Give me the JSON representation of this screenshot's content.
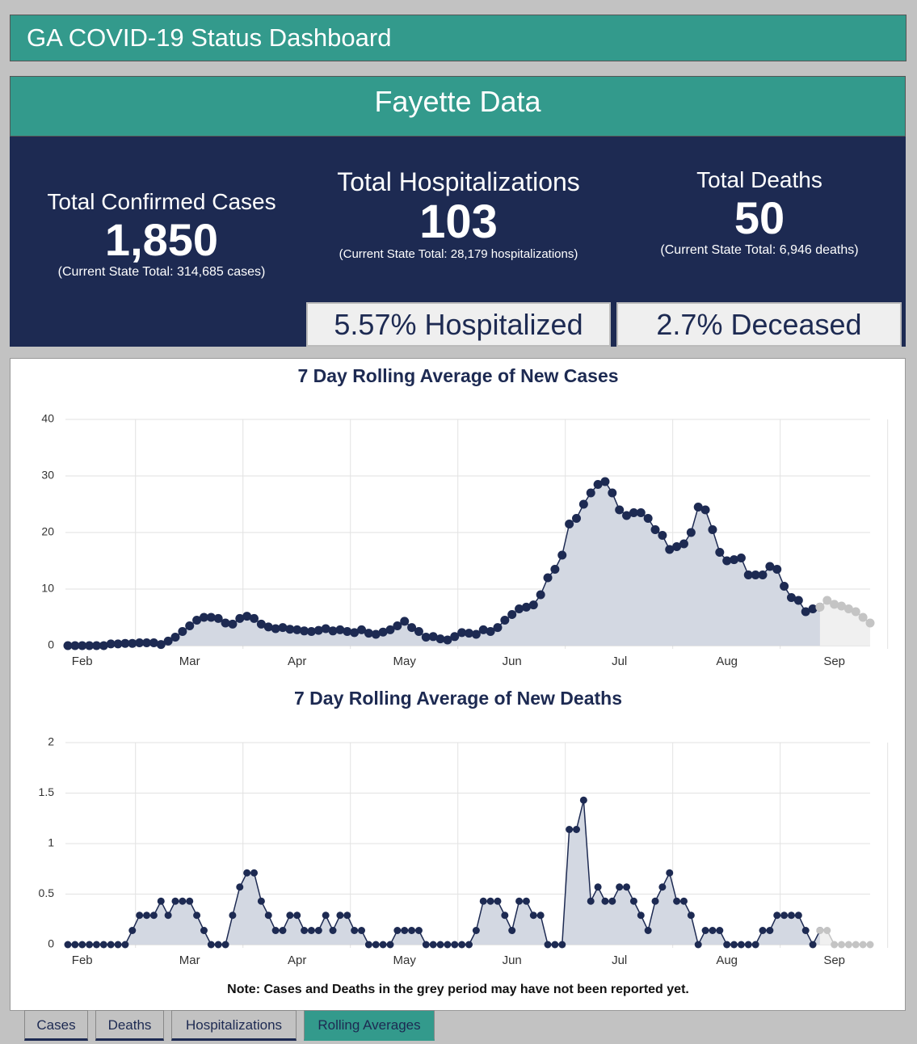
{
  "header": {
    "title": "GA COVID-19 Status Dashboard"
  },
  "panel": {
    "title": "Fayette Data",
    "stats": [
      {
        "label": "Total Confirmed Cases",
        "value": "1,850",
        "note": "(Current State Total: 314,685 cases)"
      },
      {
        "label": "Total Hospitalizations",
        "value": "103",
        "note": "(Current State Total: 28,179 hospitalizations)"
      },
      {
        "label": "Total Deaths",
        "value": "50",
        "note": "(Current State Total: 6,946 deaths)"
      }
    ],
    "rates": [
      "5.57% Hospitalized",
      "2.7% Deceased"
    ]
  },
  "chart_data": [
    {
      "type": "line",
      "title": "7 Day Rolling Average of New Cases",
      "area": true,
      "grid": true,
      "categories": [
        null,
        null,
        "Feb",
        null,
        null,
        null,
        null,
        null,
        null,
        null,
        null,
        null,
        null,
        null,
        null,
        null,
        null,
        "Mar",
        null,
        null,
        null,
        null,
        null,
        null,
        null,
        null,
        null,
        null,
        null,
        null,
        null,
        null,
        "Apr",
        null,
        null,
        null,
        null,
        null,
        null,
        null,
        null,
        null,
        null,
        null,
        null,
        null,
        null,
        "May",
        null,
        null,
        null,
        null,
        null,
        null,
        null,
        null,
        null,
        null,
        null,
        null,
        null,
        null,
        "Jun",
        null,
        null,
        null,
        null,
        null,
        null,
        null,
        null,
        null,
        null,
        null,
        null,
        null,
        null,
        "Jul",
        null,
        null,
        null,
        null,
        null,
        null,
        null,
        null,
        null,
        null,
        null,
        null,
        null,
        null,
        "Aug",
        null,
        null,
        null,
        null,
        null,
        null,
        null,
        null,
        null,
        null,
        null,
        null,
        null,
        null,
        "Sep",
        null,
        null,
        null,
        null,
        null
      ],
      "series": [
        {
          "color": "#1d2a52",
          "values": [
            0,
            0,
            0,
            0,
            0,
            0,
            0.3,
            0.3,
            0.4,
            0.4,
            0.5,
            0.5,
            0.5,
            0.2,
            0.8,
            1.5,
            2.5,
            3.5,
            4.5,
            5,
            5,
            4.8,
            4,
            3.8,
            4.8,
            5.2,
            4.8,
            3.8,
            3.3,
            3,
            3.2,
            2.9,
            2.8,
            2.6,
            2.5,
            2.7,
            3,
            2.6,
            2.8,
            2.5,
            2.3,
            2.8,
            2.2,
            2,
            2.4,
            2.8,
            3.5,
            4.3,
            3.2,
            2.5,
            1.5,
            1.6,
            1.2,
            1,
            1.6,
            2.3,
            2.2,
            2,
            2.8,
            2.5,
            3.2,
            4.5,
            5.5,
            6.5,
            6.8,
            7.2,
            9,
            12,
            13.5,
            16,
            21.5,
            22.5,
            25,
            27,
            28.5,
            29,
            27,
            24,
            23,
            23.5,
            23.5,
            22.5,
            20.5,
            19.5,
            17,
            17.5,
            18,
            20,
            24.5,
            24,
            20.5,
            16.5,
            15,
            15.2,
            15.5,
            12.5,
            12.5,
            12.5,
            14,
            13.5,
            10.5,
            8.5,
            8,
            6,
            6.5,
            6.8,
            null,
            null,
            null,
            null,
            null,
            null,
            null
          ]
        },
        {
          "color": "#c4c4c4",
          "values": [
            null,
            null,
            null,
            null,
            null,
            null,
            null,
            null,
            null,
            null,
            null,
            null,
            null,
            null,
            null,
            null,
            null,
            null,
            null,
            null,
            null,
            null,
            null,
            null,
            null,
            null,
            null,
            null,
            null,
            null,
            null,
            null,
            null,
            null,
            null,
            null,
            null,
            null,
            null,
            null,
            null,
            null,
            null,
            null,
            null,
            null,
            null,
            null,
            null,
            null,
            null,
            null,
            null,
            null,
            null,
            null,
            null,
            null,
            null,
            null,
            null,
            null,
            null,
            null,
            null,
            null,
            null,
            null,
            null,
            null,
            null,
            null,
            null,
            null,
            null,
            null,
            null,
            null,
            null,
            null,
            null,
            null,
            null,
            null,
            null,
            null,
            null,
            null,
            null,
            null,
            null,
            null,
            null,
            null,
            null,
            null,
            null,
            null,
            null,
            null,
            null,
            null,
            null,
            null,
            null,
            6.8,
            8,
            7.3,
            7,
            6.5,
            6,
            5,
            4
          ]
        }
      ],
      "ylim": [
        0,
        40
      ],
      "yticks": [
        0,
        10,
        20,
        30,
        40
      ]
    },
    {
      "type": "line",
      "title": "7 Day Rolling Average of New Deaths",
      "area": true,
      "grid": true,
      "categories": [
        null,
        null,
        "Feb",
        null,
        null,
        null,
        null,
        null,
        null,
        null,
        null,
        null,
        null,
        null,
        null,
        null,
        null,
        "Mar",
        null,
        null,
        null,
        null,
        null,
        null,
        null,
        null,
        null,
        null,
        null,
        null,
        null,
        null,
        "Apr",
        null,
        null,
        null,
        null,
        null,
        null,
        null,
        null,
        null,
        null,
        null,
        null,
        null,
        null,
        "May",
        null,
        null,
        null,
        null,
        null,
        null,
        null,
        null,
        null,
        null,
        null,
        null,
        null,
        null,
        "Jun",
        null,
        null,
        null,
        null,
        null,
        null,
        null,
        null,
        null,
        null,
        null,
        null,
        null,
        null,
        "Jul",
        null,
        null,
        null,
        null,
        null,
        null,
        null,
        null,
        null,
        null,
        null,
        null,
        null,
        null,
        "Aug",
        null,
        null,
        null,
        null,
        null,
        null,
        null,
        null,
        null,
        null,
        null,
        null,
        null,
        null,
        "Sep",
        null,
        null,
        null,
        null,
        null
      ],
      "series": [
        {
          "color": "#1d2a52",
          "values": [
            0,
            0,
            0,
            0,
            0,
            0,
            0,
            0,
            0,
            0.14,
            0.29,
            0.29,
            0.29,
            0.43,
            0.29,
            0.43,
            0.43,
            0.43,
            0.29,
            0.14,
            0,
            0,
            0,
            0.29,
            0.57,
            0.71,
            0.71,
            0.43,
            0.29,
            0.14,
            0.14,
            0.29,
            0.29,
            0.14,
            0.14,
            0.14,
            0.29,
            0.14,
            0.29,
            0.29,
            0.14,
            0.14,
            0,
            0,
            0,
            0,
            0.14,
            0.14,
            0.14,
            0.14,
            0,
            0,
            0,
            0,
            0,
            0,
            0,
            0.14,
            0.43,
            0.43,
            0.43,
            0.29,
            0.14,
            0.43,
            0.43,
            0.29,
            0.29,
            0,
            0,
            0,
            1.14,
            1.14,
            1.43,
            0.43,
            0.57,
            0.43,
            0.43,
            0.57,
            0.57,
            0.43,
            0.29,
            0.14,
            0.43,
            0.57,
            0.71,
            0.43,
            0.43,
            0.29,
            0,
            0.14,
            0.14,
            0.14,
            0,
            0,
            0,
            0,
            0,
            0.14,
            0.14,
            0.29,
            0.29,
            0.29,
            0.29,
            0.14,
            0,
            0.14,
            null,
            null,
            null,
            null,
            null,
            null,
            null
          ]
        },
        {
          "color": "#c4c4c4",
          "values": [
            null,
            null,
            null,
            null,
            null,
            null,
            null,
            null,
            null,
            null,
            null,
            null,
            null,
            null,
            null,
            null,
            null,
            null,
            null,
            null,
            null,
            null,
            null,
            null,
            null,
            null,
            null,
            null,
            null,
            null,
            null,
            null,
            null,
            null,
            null,
            null,
            null,
            null,
            null,
            null,
            null,
            null,
            null,
            null,
            null,
            null,
            null,
            null,
            null,
            null,
            null,
            null,
            null,
            null,
            null,
            null,
            null,
            null,
            null,
            null,
            null,
            null,
            null,
            null,
            null,
            null,
            null,
            null,
            null,
            null,
            null,
            null,
            null,
            null,
            null,
            null,
            null,
            null,
            null,
            null,
            null,
            null,
            null,
            null,
            null,
            null,
            null,
            null,
            null,
            null,
            null,
            null,
            null,
            null,
            null,
            null,
            null,
            null,
            null,
            null,
            null,
            null,
            null,
            null,
            null,
            0.14,
            0.14,
            0,
            0,
            0,
            0,
            0,
            0
          ]
        }
      ],
      "ylim": [
        0,
        2
      ],
      "yticks": [
        0,
        0.5,
        1,
        1.5,
        2
      ]
    }
  ],
  "note": "Note: Cases and Deaths in the grey period may have not been reported yet.",
  "tabs": [
    "Cases",
    "Deaths",
    "Hospitalizations",
    "Rolling Averages"
  ],
  "active_tab": 3
}
